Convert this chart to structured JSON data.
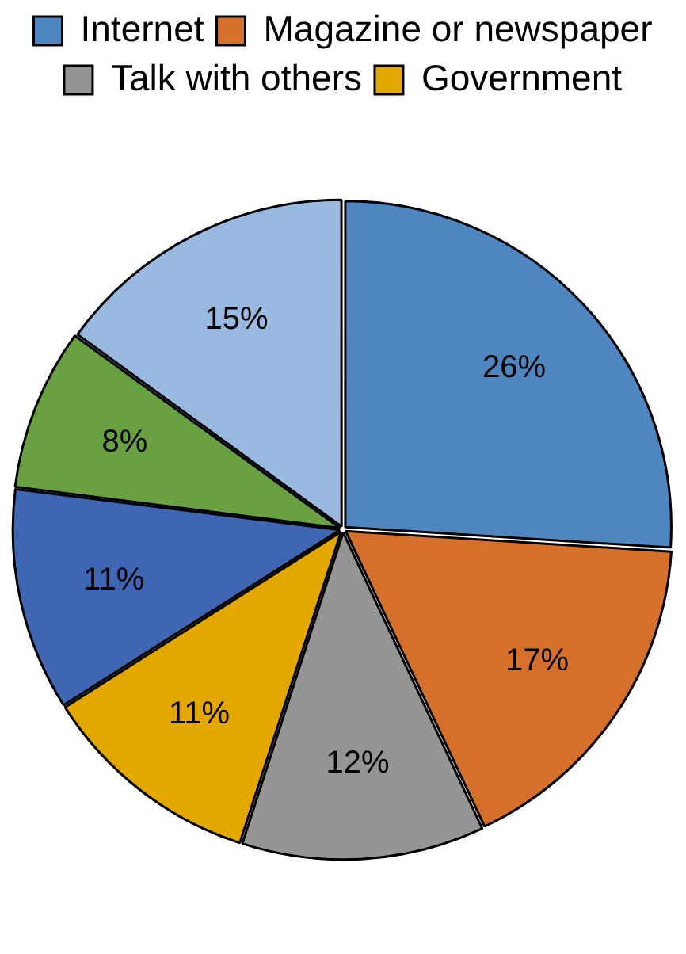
{
  "chart_data": {
    "type": "pie",
    "categories": [
      "Internet",
      "Magazine or newspaper",
      "Talk with others",
      "Government",
      null,
      null,
      null
    ],
    "values": [
      26,
      17,
      12,
      11,
      11,
      8,
      15
    ],
    "value_labels": [
      "26%",
      "17%",
      "12%",
      "11%",
      "11%",
      "8%",
      "15%"
    ],
    "colors": [
      "#4f86c0",
      "#d4702c",
      "#959595",
      "#e2a800",
      "#3e66b3",
      "#69a042",
      "#9ab9e0"
    ],
    "legend": "top"
  }
}
